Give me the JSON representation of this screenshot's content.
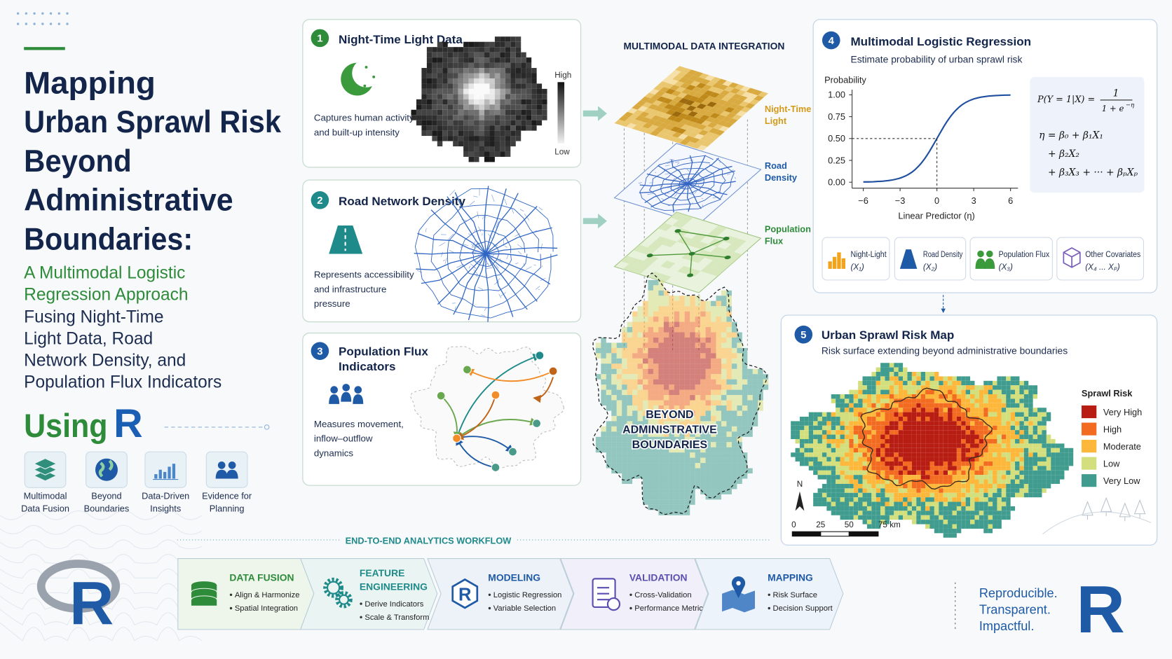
{
  "header": {
    "title_lines": [
      "Mapping",
      "Urban Sprawl Risk",
      "Beyond",
      "Administrative",
      "Boundaries:"
    ],
    "subtitle_lines": [
      "A Multimodal Logistic",
      "Regression Approach"
    ],
    "description_lines": [
      "Fusing Night-Time",
      "Light Data, Road",
      "Network Density, and",
      "Population Flux Indicators"
    ],
    "using": "Using",
    "r": "R"
  },
  "features": [
    {
      "label_lines": [
        "Multimodal",
        "Data Fusion"
      ]
    },
    {
      "label_lines": [
        "Beyond",
        "Boundaries"
      ]
    },
    {
      "label_lines": [
        "Data-Driven",
        "Insights"
      ]
    },
    {
      "label_lines": [
        "Evidence for",
        "Planning"
      ]
    }
  ],
  "panels": [
    {
      "number": "1",
      "title_lines": [
        "Night-Time Light Data"
      ],
      "description_lines": [
        "Captures human activity",
        "and built-up intensity"
      ],
      "legend_high": "High",
      "legend_low": "Low"
    },
    {
      "number": "2",
      "title_lines": [
        "Road Network Density"
      ],
      "description_lines": [
        "Represents accessibility",
        "and infrastructure",
        "pressure"
      ]
    },
    {
      "number": "3",
      "title_lines": [
        "Population Flux",
        "Indicators"
      ],
      "description_lines": [
        "Measures movement,",
        "inflow–outflow",
        "dynamics"
      ]
    }
  ],
  "integration": {
    "title": "MULTIMODAL DATA INTEGRATION",
    "layers": [
      {
        "label_lines": [
          "Night-Time",
          "Light"
        ]
      },
      {
        "label_lines": [
          "Road",
          "Density"
        ]
      },
      {
        "label_lines": [
          "Population",
          "Flux"
        ]
      }
    ],
    "beyond_lines": [
      "BEYOND",
      "ADMINISTRATIVE",
      "BOUNDARIES"
    ]
  },
  "regression": {
    "number": "4",
    "title": "Multimodal Logistic Regression",
    "subtitle": "Estimate probability of urban sprawl risk",
    "y_label": "Probability",
    "x_label": "Linear Predictor (η)",
    "yticks": [
      {
        "value": 0,
        "label": "0.00"
      },
      {
        "value": 0.25,
        "label": "0.25"
      },
      {
        "value": 0.5,
        "label": "0.50"
      },
      {
        "value": 0.75,
        "label": "0.75"
      },
      {
        "value": 1,
        "label": "1.00"
      }
    ],
    "xticks": [
      {
        "value": -6,
        "label": "−6"
      },
      {
        "value": -3,
        "label": "−3"
      },
      0,
      3,
      6
    ],
    "formula": {
      "lhs": "P(Y = 1|X) =",
      "numerator": "1",
      "denominator": "1 + e",
      "exponent": "−η",
      "lines": [
        "η = β₀ + β₁X₁",
        "+ β₂X₂",
        "+ β₃X₃ + ··· + βₚXₚ"
      ]
    },
    "covariates": [
      {
        "name": "Night-Light",
        "symbol": "(X₁)"
      },
      {
        "name": "Road Density",
        "symbol": "(X₂)"
      },
      {
        "name": "Population Flux",
        "symbol": "(X₃)"
      },
      {
        "name": "Other Covariates",
        "symbol": "(X₄ ... Xₚ)"
      }
    ]
  },
  "risk_map": {
    "number": "5",
    "title": "Urban Sprawl Risk Map",
    "subtitle": "Risk surface extending beyond administrative boundaries",
    "legend_title": "Sprawl Risk",
    "legend": [
      {
        "label": "Very High",
        "color": "#b81d13"
      },
      {
        "label": "High",
        "color": "#f26b21"
      },
      {
        "label": "Moderate",
        "color": "#fdb73b"
      },
      {
        "label": "Low",
        "color": "#d3df7c"
      },
      {
        "label": "Very Low",
        "color": "#3f9c8e"
      }
    ],
    "north": "N",
    "scale": [
      "0",
      "25",
      "50",
      "75 km"
    ]
  },
  "workflow": {
    "title": "END-TO-END ANALYTICS WORKFLOW",
    "steps": [
      {
        "title_lines": [
          "DATA FUSION"
        ],
        "items": [
          "Align & Harmonize",
          "Spatial Integration"
        ]
      },
      {
        "title_lines": [
          "FEATURE",
          "ENGINEERING"
        ],
        "items": [
          "Derive Indicators",
          "Scale & Transform"
        ]
      },
      {
        "title_lines": [
          "MODELING"
        ],
        "items": [
          "Logistic Regression",
          "Variable Selection"
        ]
      },
      {
        "title_lines": [
          "VALIDATION"
        ],
        "items": [
          "Cross-Validation",
          "Performance Metrics"
        ]
      },
      {
        "title_lines": [
          "MAPPING"
        ],
        "items": [
          "Risk Surface",
          "Decision Support"
        ]
      }
    ]
  },
  "footer": {
    "tagline_lines": [
      "Reproducible.",
      "Transparent.",
      "Impactful."
    ]
  }
}
